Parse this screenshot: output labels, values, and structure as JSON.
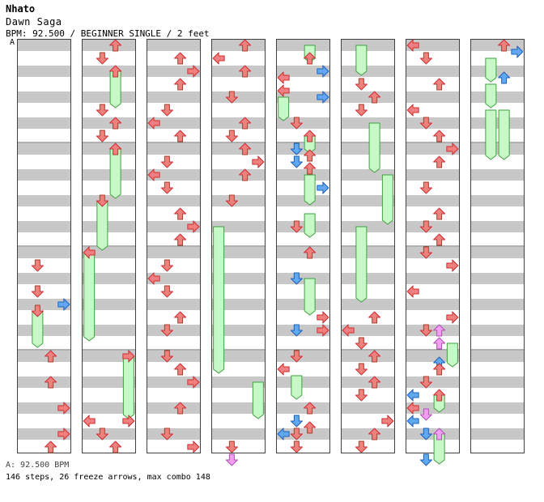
{
  "header": {
    "artist": "Nhato",
    "title": "Dawn Saga",
    "info": "BPM: 92.500 / BEGINNER SINGLE / 2 feet",
    "section_marker": "A"
  },
  "footer": {
    "bpm_line": "A: 92.500 BPM",
    "stats_line": "146 steps, 26 freeze arrows, max combo 148"
  },
  "colors": {
    "lane_stripe": "#c8c8c8",
    "lane_bg": "#ffffff",
    "arrow_red": "#f08080",
    "arrow_blue": "#60a8f0",
    "arrow_pink": "#f0a0f0",
    "freeze_green": "#c8f8c8",
    "freeze_border": "#40a040"
  },
  "chart_data": {
    "type": "step-chart",
    "lanes": [
      "left",
      "down",
      "up",
      "right"
    ],
    "columns": 8,
    "measures_per_column": 4,
    "rows_per_measure": 8,
    "arrows": [
      {
        "c": 0,
        "lane": "down",
        "row": 17,
        "color": "red"
      },
      {
        "c": 0,
        "lane": "down",
        "row": 19,
        "color": "red"
      },
      {
        "c": 0,
        "lane": "right",
        "row": 20,
        "color": "blue"
      },
      {
        "c": 0,
        "lane": "down",
        "row": 20.5,
        "color": "red"
      },
      {
        "c": 0,
        "lane": "up",
        "row": 24,
        "color": "red"
      },
      {
        "c": 0,
        "lane": "up",
        "row": 26,
        "color": "red"
      },
      {
        "c": 0,
        "lane": "right",
        "row": 28,
        "color": "red"
      },
      {
        "c": 0,
        "lane": "right",
        "row": 30,
        "color": "red"
      },
      {
        "c": 0,
        "lane": "up",
        "row": 31,
        "color": "red"
      },
      {
        "c": 1,
        "lane": "up",
        "row": 0,
        "color": "red"
      },
      {
        "c": 1,
        "lane": "down",
        "row": 1,
        "color": "red"
      },
      {
        "c": 1,
        "lane": "up",
        "row": 2,
        "color": "red"
      },
      {
        "c": 1,
        "lane": "down",
        "row": 5,
        "color": "red"
      },
      {
        "c": 1,
        "lane": "up",
        "row": 6,
        "color": "red"
      },
      {
        "c": 1,
        "lane": "down",
        "row": 7,
        "color": "red"
      },
      {
        "c": 1,
        "lane": "up",
        "row": 8,
        "color": "red"
      },
      {
        "c": 1,
        "lane": "down",
        "row": 12,
        "color": "red"
      },
      {
        "c": 1,
        "lane": "left",
        "row": 16,
        "color": "red"
      },
      {
        "c": 1,
        "lane": "right",
        "row": 24,
        "color": "red"
      },
      {
        "c": 1,
        "lane": "right",
        "row": 29,
        "color": "red"
      },
      {
        "c": 1,
        "lane": "left",
        "row": 29,
        "color": "red"
      },
      {
        "c": 1,
        "lane": "down",
        "row": 30,
        "color": "red"
      },
      {
        "c": 1,
        "lane": "up",
        "row": 31,
        "color": "red"
      },
      {
        "c": 2,
        "lane": "up",
        "row": 1,
        "color": "red"
      },
      {
        "c": 2,
        "lane": "right",
        "row": 2,
        "color": "red"
      },
      {
        "c": 2,
        "lane": "up",
        "row": 3,
        "color": "red"
      },
      {
        "c": 2,
        "lane": "down",
        "row": 5,
        "color": "red"
      },
      {
        "c": 2,
        "lane": "left",
        "row": 6,
        "color": "red"
      },
      {
        "c": 2,
        "lane": "up",
        "row": 7,
        "color": "red"
      },
      {
        "c": 2,
        "lane": "down",
        "row": 9,
        "color": "red"
      },
      {
        "c": 2,
        "lane": "left",
        "row": 10,
        "color": "red"
      },
      {
        "c": 2,
        "lane": "down",
        "row": 11,
        "color": "red"
      },
      {
        "c": 2,
        "lane": "up",
        "row": 13,
        "color": "red"
      },
      {
        "c": 2,
        "lane": "right",
        "row": 14,
        "color": "red"
      },
      {
        "c": 2,
        "lane": "up",
        "row": 15,
        "color": "red"
      },
      {
        "c": 2,
        "lane": "down",
        "row": 17,
        "color": "red"
      },
      {
        "c": 2,
        "lane": "left",
        "row": 18,
        "color": "red"
      },
      {
        "c": 2,
        "lane": "down",
        "row": 19,
        "color": "red"
      },
      {
        "c": 2,
        "lane": "up",
        "row": 21,
        "color": "red"
      },
      {
        "c": 2,
        "lane": "down",
        "row": 22,
        "color": "red"
      },
      {
        "c": 2,
        "lane": "down",
        "row": 24,
        "color": "red"
      },
      {
        "c": 2,
        "lane": "up",
        "row": 25,
        "color": "red"
      },
      {
        "c": 2,
        "lane": "right",
        "row": 26,
        "color": "red"
      },
      {
        "c": 2,
        "lane": "up",
        "row": 28,
        "color": "red"
      },
      {
        "c": 2,
        "lane": "down",
        "row": 30,
        "color": "red"
      },
      {
        "c": 2,
        "lane": "right",
        "row": 31,
        "color": "red"
      },
      {
        "c": 3,
        "lane": "up",
        "row": 0,
        "color": "red"
      },
      {
        "c": 3,
        "lane": "left",
        "row": 1,
        "color": "red"
      },
      {
        "c": 3,
        "lane": "up",
        "row": 2,
        "color": "red"
      },
      {
        "c": 3,
        "lane": "down",
        "row": 4,
        "color": "red"
      },
      {
        "c": 3,
        "lane": "up",
        "row": 6,
        "color": "red"
      },
      {
        "c": 3,
        "lane": "down",
        "row": 7,
        "color": "red"
      },
      {
        "c": 3,
        "lane": "up",
        "row": 8,
        "color": "red"
      },
      {
        "c": 3,
        "lane": "right",
        "row": 9,
        "color": "red"
      },
      {
        "c": 3,
        "lane": "up",
        "row": 10,
        "color": "red"
      },
      {
        "c": 3,
        "lane": "down",
        "row": 12,
        "color": "red"
      },
      {
        "c": 3,
        "lane": "down",
        "row": 31,
        "color": "red"
      },
      {
        "c": 3,
        "lane": "down",
        "row": 32,
        "color": "pink"
      },
      {
        "c": 4,
        "lane": "up",
        "row": 1,
        "color": "red"
      },
      {
        "c": 4,
        "lane": "right",
        "row": 2,
        "color": "blue"
      },
      {
        "c": 4,
        "lane": "left",
        "row": 2.5,
        "color": "red"
      },
      {
        "c": 4,
        "lane": "left",
        "row": 3.5,
        "color": "red"
      },
      {
        "c": 4,
        "lane": "right",
        "row": 4,
        "color": "blue"
      },
      {
        "c": 4,
        "lane": "down",
        "row": 6,
        "color": "red"
      },
      {
        "c": 4,
        "lane": "up",
        "row": 7,
        "color": "red"
      },
      {
        "c": 4,
        "lane": "down",
        "row": 8,
        "color": "blue"
      },
      {
        "c": 4,
        "lane": "up",
        "row": 8.5,
        "color": "red"
      },
      {
        "c": 4,
        "lane": "down",
        "row": 9,
        "color": "blue"
      },
      {
        "c": 4,
        "lane": "up",
        "row": 9.5,
        "color": "red"
      },
      {
        "c": 4,
        "lane": "right",
        "row": 11,
        "color": "blue"
      },
      {
        "c": 4,
        "lane": "down",
        "row": 14,
        "color": "red"
      },
      {
        "c": 4,
        "lane": "up",
        "row": 16,
        "color": "red"
      },
      {
        "c": 4,
        "lane": "down",
        "row": 18,
        "color": "blue"
      },
      {
        "c": 4,
        "lane": "right",
        "row": 21,
        "color": "red"
      },
      {
        "c": 4,
        "lane": "down",
        "row": 22,
        "color": "blue"
      },
      {
        "c": 4,
        "lane": "right",
        "row": 22,
        "color": "red"
      },
      {
        "c": 4,
        "lane": "down",
        "row": 24,
        "color": "red"
      },
      {
        "c": 4,
        "lane": "left",
        "row": 25,
        "color": "red"
      },
      {
        "c": 4,
        "lane": "up",
        "row": 28,
        "color": "red"
      },
      {
        "c": 4,
        "lane": "down",
        "row": 29,
        "color": "blue"
      },
      {
        "c": 4,
        "lane": "up",
        "row": 29.5,
        "color": "red"
      },
      {
        "c": 4,
        "lane": "left",
        "row": 30,
        "color": "blue"
      },
      {
        "c": 4,
        "lane": "down",
        "row": 30,
        "color": "red"
      },
      {
        "c": 4,
        "lane": "down",
        "row": 31,
        "color": "red"
      },
      {
        "c": 5,
        "lane": "down",
        "row": 3,
        "color": "red"
      },
      {
        "c": 5,
        "lane": "up",
        "row": 4,
        "color": "red"
      },
      {
        "c": 5,
        "lane": "down",
        "row": 5,
        "color": "red"
      },
      {
        "c": 5,
        "lane": "up",
        "row": 21,
        "color": "red"
      },
      {
        "c": 5,
        "lane": "left",
        "row": 22,
        "color": "red"
      },
      {
        "c": 5,
        "lane": "down",
        "row": 23,
        "color": "red"
      },
      {
        "c": 5,
        "lane": "up",
        "row": 24,
        "color": "red"
      },
      {
        "c": 5,
        "lane": "down",
        "row": 25,
        "color": "red"
      },
      {
        "c": 5,
        "lane": "up",
        "row": 26,
        "color": "red"
      },
      {
        "c": 5,
        "lane": "down",
        "row": 27,
        "color": "red"
      },
      {
        "c": 5,
        "lane": "right",
        "row": 29,
        "color": "red"
      },
      {
        "c": 5,
        "lane": "up",
        "row": 30,
        "color": "red"
      },
      {
        "c": 5,
        "lane": "down",
        "row": 31,
        "color": "red"
      },
      {
        "c": 6,
        "lane": "left",
        "row": 0,
        "color": "red"
      },
      {
        "c": 6,
        "lane": "down",
        "row": 1,
        "color": "red"
      },
      {
        "c": 6,
        "lane": "up",
        "row": 3,
        "color": "red"
      },
      {
        "c": 6,
        "lane": "left",
        "row": 5,
        "color": "red"
      },
      {
        "c": 6,
        "lane": "down",
        "row": 6,
        "color": "red"
      },
      {
        "c": 6,
        "lane": "up",
        "row": 7,
        "color": "red"
      },
      {
        "c": 6,
        "lane": "right",
        "row": 8,
        "color": "red"
      },
      {
        "c": 6,
        "lane": "up",
        "row": 9,
        "color": "red"
      },
      {
        "c": 6,
        "lane": "down",
        "row": 11,
        "color": "red"
      },
      {
        "c": 6,
        "lane": "up",
        "row": 13,
        "color": "red"
      },
      {
        "c": 6,
        "lane": "down",
        "row": 14,
        "color": "red"
      },
      {
        "c": 6,
        "lane": "up",
        "row": 15,
        "color": "red"
      },
      {
        "c": 6,
        "lane": "down",
        "row": 16,
        "color": "red"
      },
      {
        "c": 6,
        "lane": "right",
        "row": 17,
        "color": "red"
      },
      {
        "c": 6,
        "lane": "left",
        "row": 19,
        "color": "red"
      },
      {
        "c": 6,
        "lane": "right",
        "row": 21,
        "color": "red"
      },
      {
        "c": 6,
        "lane": "down",
        "row": 22,
        "color": "red"
      },
      {
        "c": 6,
        "lane": "up",
        "row": 22,
        "color": "pink"
      },
      {
        "c": 6,
        "lane": "up",
        "row": 23,
        "color": "pink"
      },
      {
        "c": 6,
        "lane": "up",
        "row": 24.5,
        "color": "blue"
      },
      {
        "c": 6,
        "lane": "up",
        "row": 25,
        "color": "red"
      },
      {
        "c": 6,
        "lane": "down",
        "row": 26,
        "color": "red"
      },
      {
        "c": 6,
        "lane": "left",
        "row": 27,
        "color": "blue"
      },
      {
        "c": 6,
        "lane": "up",
        "row": 27,
        "color": "red"
      },
      {
        "c": 6,
        "lane": "left",
        "row": 28,
        "color": "red"
      },
      {
        "c": 6,
        "lane": "down",
        "row": 28.5,
        "color": "pink"
      },
      {
        "c": 6,
        "lane": "left",
        "row": 29,
        "color": "blue"
      },
      {
        "c": 6,
        "lane": "down",
        "row": 30,
        "color": "blue"
      },
      {
        "c": 6,
        "lane": "up",
        "row": 30,
        "color": "pink"
      },
      {
        "c": 6,
        "lane": "down",
        "row": 32,
        "color": "blue"
      },
      {
        "c": 7,
        "lane": "up",
        "row": 0,
        "color": "red"
      },
      {
        "c": 7,
        "lane": "right",
        "row": 0.5,
        "color": "blue"
      },
      {
        "c": 7,
        "lane": "up",
        "row": 2.5,
        "color": "blue"
      }
    ],
    "freezes": [
      {
        "c": 0,
        "lane": "down",
        "start": 20.5,
        "end": 23
      },
      {
        "c": 1,
        "lane": "up",
        "start": 2,
        "end": 4.5
      },
      {
        "c": 1,
        "lane": "up",
        "start": 8,
        "end": 11.5
      },
      {
        "c": 1,
        "lane": "down",
        "start": 12,
        "end": 15.5
      },
      {
        "c": 1,
        "lane": "left",
        "start": 16,
        "end": 22.5
      },
      {
        "c": 1,
        "lane": "right",
        "start": 24,
        "end": 28.5
      },
      {
        "c": 3,
        "lane": "left",
        "start": 14,
        "end": 25
      },
      {
        "c": 3,
        "lane": "right",
        "start": 26,
        "end": 28.5
      },
      {
        "c": 4,
        "lane": "up",
        "start": 0,
        "end": 1
      },
      {
        "c": 4,
        "lane": "left",
        "start": 4,
        "end": 5.5
      },
      {
        "c": 4,
        "lane": "up",
        "start": 7,
        "end": 8
      },
      {
        "c": 4,
        "lane": "up",
        "start": 10,
        "end": 12
      },
      {
        "c": 4,
        "lane": "up",
        "start": 13,
        "end": 14.5
      },
      {
        "c": 4,
        "lane": "up",
        "start": 18,
        "end": 20.5
      },
      {
        "c": 4,
        "lane": "down",
        "start": 25.5,
        "end": 27
      },
      {
        "c": 5,
        "lane": "down",
        "start": 0,
        "end": 2
      },
      {
        "c": 5,
        "lane": "up",
        "start": 6,
        "end": 9.5
      },
      {
        "c": 5,
        "lane": "right",
        "start": 10,
        "end": 13.5
      },
      {
        "c": 5,
        "lane": "down",
        "start": 14,
        "end": 19.5
      },
      {
        "c": 6,
        "lane": "right",
        "start": 23,
        "end": 24.5
      },
      {
        "c": 6,
        "lane": "up",
        "start": 27,
        "end": 28
      },
      {
        "c": 6,
        "lane": "up",
        "start": 30,
        "end": 32
      },
      {
        "c": 7,
        "lane": "down",
        "start": 1,
        "end": 2.5
      },
      {
        "c": 7,
        "lane": "down",
        "start": 3,
        "end": 4.5
      },
      {
        "c": 7,
        "lane": "down",
        "start": 5,
        "end": 8.5
      },
      {
        "c": 7,
        "lane": "up",
        "start": 5,
        "end": 8.5
      }
    ]
  }
}
